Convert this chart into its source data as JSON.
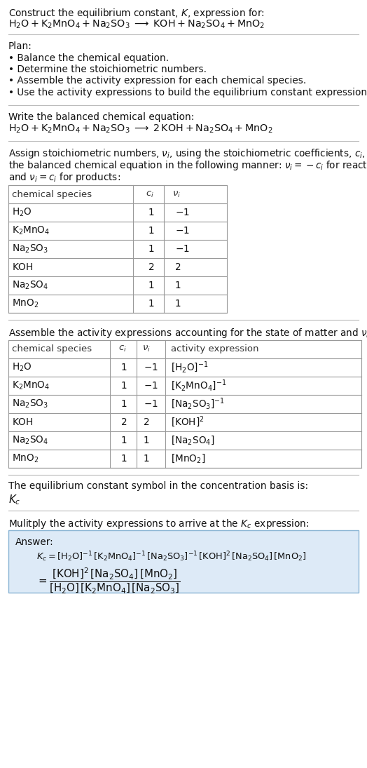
{
  "bg_color": "#ffffff",
  "title_line1": "Construct the equilibrium constant, $K$, expression for:",
  "title_line2": "$\\mathrm{H_2O + K_2MnO_4 + Na_2SO_3 \\;\\longrightarrow\\; KOH + Na_2SO_4 + MnO_2}$",
  "plan_header": "Plan:",
  "plan_items": [
    "• Balance the chemical equation.",
    "• Determine the stoichiometric numbers.",
    "• Assemble the activity expression for each chemical species.",
    "• Use the activity expressions to build the equilibrium constant expression."
  ],
  "balanced_header": "Write the balanced chemical equation:",
  "balanced_eq": "$\\mathrm{H_2O + K_2MnO_4 + Na_2SO_3 \\;\\longrightarrow\\; 2\\,KOH + Na_2SO_4 + MnO_2}$",
  "stoich_intro_lines": [
    "Assign stoichiometric numbers, $\\nu_i$, using the stoichiometric coefficients, $c_i$, from",
    "the balanced chemical equation in the following manner: $\\nu_i = -c_i$ for reactants",
    "and $\\nu_i = c_i$ for products:"
  ],
  "table1_headers": [
    "chemical species",
    "$c_i$",
    "$\\nu_i$"
  ],
  "table1_rows": [
    [
      "$\\mathrm{H_2O}$",
      "1",
      "$-1$"
    ],
    [
      "$\\mathrm{K_2MnO_4}$",
      "1",
      "$-1$"
    ],
    [
      "$\\mathrm{Na_2SO_3}$",
      "1",
      "$-1$"
    ],
    [
      "$\\mathrm{KOH}$",
      "2",
      "2"
    ],
    [
      "$\\mathrm{Na_2SO_4}$",
      "1",
      "1"
    ],
    [
      "$\\mathrm{MnO_2}$",
      "1",
      "1"
    ]
  ],
  "activity_intro": "Assemble the activity expressions accounting for the state of matter and $\\nu_i$:",
  "table2_headers": [
    "chemical species",
    "$c_i$",
    "$\\nu_i$",
    "activity expression"
  ],
  "table2_rows": [
    [
      "$\\mathrm{H_2O}$",
      "1",
      "$-1$",
      "$[\\mathrm{H_2O}]^{-1}$"
    ],
    [
      "$\\mathrm{K_2MnO_4}$",
      "1",
      "$-1$",
      "$[\\mathrm{K_2MnO_4}]^{-1}$"
    ],
    [
      "$\\mathrm{Na_2SO_3}$",
      "1",
      "$-1$",
      "$[\\mathrm{Na_2SO_3}]^{-1}$"
    ],
    [
      "$\\mathrm{KOH}$",
      "2",
      "2",
      "$[\\mathrm{KOH}]^{2}$"
    ],
    [
      "$\\mathrm{Na_2SO_4}$",
      "1",
      "1",
      "$[\\mathrm{Na_2SO_4}]$"
    ],
    [
      "$\\mathrm{MnO_2}$",
      "1",
      "1",
      "$[\\mathrm{MnO_2}]$"
    ]
  ],
  "eq_symbol_text": "The equilibrium constant symbol in the concentration basis is:",
  "eq_symbol": "$K_c$",
  "multiply_text": "Mulitply the activity expressions to arrive at the $K_c$ expression:",
  "answer_box_color": "#ddeaf7",
  "answer_box_border": "#8ab4d4",
  "answer_label": "Answer:",
  "answer_line1": "$K_c = [\\mathrm{H_2O}]^{-1}\\,[\\mathrm{K_2MnO_4}]^{-1}\\,[\\mathrm{Na_2SO_3}]^{-1}\\,[\\mathrm{KOH}]^{2}\\,[\\mathrm{Na_2SO_4}]\\,[\\mathrm{MnO_2}]$",
  "answer_eq_lhs": "$= \\dfrac{[\\mathrm{KOH}]^{2}\\,[\\mathrm{Na_2SO_4}]\\,[\\mathrm{MnO_2}]}{[\\mathrm{H_2O}]\\,[\\mathrm{K_2MnO_4}]\\,[\\mathrm{Na_2SO_3}]}$"
}
